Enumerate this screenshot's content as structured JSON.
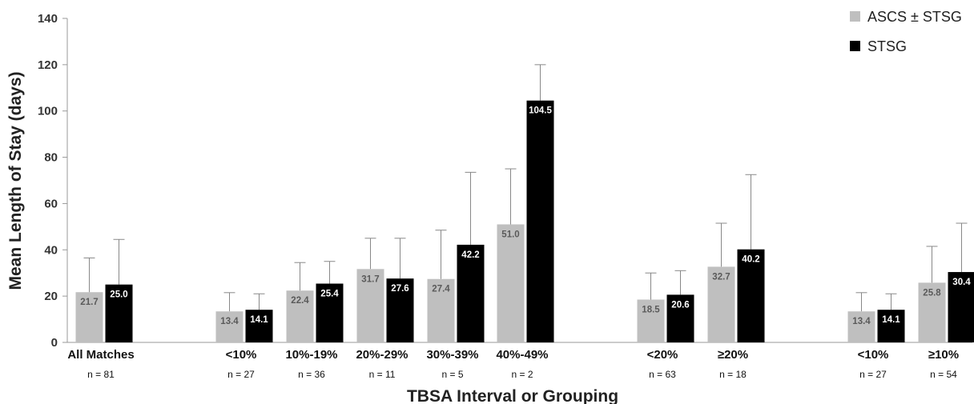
{
  "chart_data": {
    "type": "bar",
    "title": "",
    "xlabel": "TBSA Interval or Grouping",
    "ylabel": "Mean Length of Stay (days)",
    "ylim": [
      0,
      140
    ],
    "yticks": [
      0,
      20,
      40,
      60,
      80,
      100,
      120,
      140
    ],
    "grid": false,
    "legend_position": "top-right",
    "categories": [
      "All Matches",
      "<10%",
      "10%-19%",
      "20%-29%",
      "30%-39%",
      "40%-49%",
      "<20%",
      "≥20%",
      "<10%",
      "≥10%"
    ],
    "counts": [
      "n = 81",
      "n = 27",
      "n = 36",
      "n = 11",
      "n = 5",
      "n = 2",
      "n = 63",
      "n = 18",
      "n = 27",
      "n = 54"
    ],
    "series": [
      {
        "name": "ASCS ± STSG",
        "color": "#bfbfbf",
        "values": [
          21.7,
          13.4,
          22.4,
          31.7,
          27.4,
          51.0,
          18.5,
          32.7,
          13.4,
          25.8
        ],
        "labels": [
          "21.7",
          "13.4",
          "22.4",
          "31.7",
          "27.4",
          "51.0",
          "18.5",
          "32.7",
          "13.4",
          "25.8"
        ],
        "error_upper": [
          36.5,
          21.5,
          34.5,
          45.0,
          48.5,
          75.0,
          30.0,
          51.5,
          21.5,
          41.5
        ]
      },
      {
        "name": "STSG",
        "color": "#000000",
        "values": [
          25.0,
          14.1,
          25.4,
          27.6,
          42.2,
          104.5,
          20.6,
          40.2,
          14.1,
          30.4
        ],
        "labels": [
          "25.0",
          "14.1",
          "25.4",
          "27.6",
          "42.2",
          "104.5",
          "20.6",
          "40.2",
          "14.1",
          "30.4"
        ],
        "error_upper": [
          44.5,
          21.0,
          35.0,
          45.0,
          73.5,
          120.0,
          31.0,
          72.5,
          21.0,
          51.5
        ]
      }
    ]
  }
}
